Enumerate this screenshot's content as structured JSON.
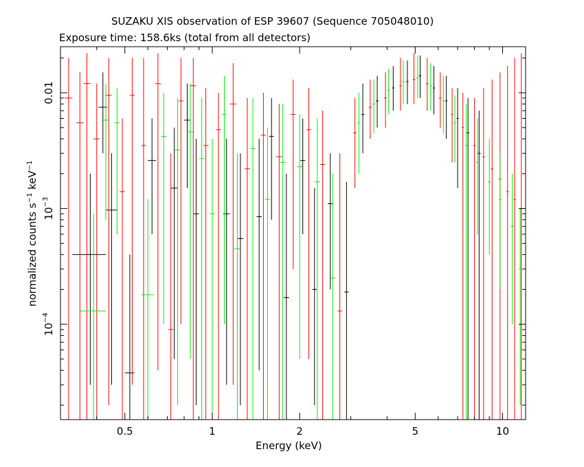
{
  "chart_data": {
    "type": "scatter",
    "title": "SUZAKU XIS observation of ESP 39607 (Sequence 705048010)",
    "subtitle": "Exposure time: 158.6ks (total from all detectors)",
    "xlabel": "Energy (keV)",
    "ylabel": {
      "prefix": "normalized counts s",
      "sup1": "−1",
      "mid": " keV",
      "sup2": "−1"
    },
    "xscale": "log",
    "yscale": "log",
    "xlim": [
      0.3,
      12
    ],
    "ylim": [
      1.5e-05,
      0.025
    ],
    "x_ticks": [
      {
        "value": 0.5,
        "label": "0.5"
      },
      {
        "value": 1,
        "label": "1"
      },
      {
        "value": 2,
        "label": "2"
      },
      {
        "value": 5,
        "label": "5"
      },
      {
        "value": 10,
        "label": "10"
      }
    ],
    "y_ticks": [
      {
        "value": 0.01,
        "label": "0.01"
      },
      {
        "value": 0.001,
        "base": "10",
        "exp": "−3"
      },
      {
        "value": 0.0001,
        "base": "10",
        "exp": "−4"
      }
    ],
    "grid": false,
    "legend": "none",
    "series": [
      {
        "color": "#000000",
        "points": [
          {
            "x": 0.38,
            "dx": 0.05,
            "y": 0.0004,
            "ylo": 3e-05,
            "yhi": 0.002
          },
          {
            "x": 0.42,
            "dx": 0.015,
            "y": 0.0075,
            "ylo": 0.003,
            "yhi": 0.015
          },
          {
            "x": 0.45,
            "dx": 0.02,
            "y": 0.00097,
            "ylo": 3e-05,
            "yhi": 0.003
          },
          {
            "x": 0.52,
            "dx": 0.02,
            "y": 3.8e-05,
            "ylo": 1.5e-05,
            "yhi": 0.0004
          },
          {
            "x": 0.62,
            "dx": 0.02,
            "y": 0.0026,
            "ylo": 0.0006,
            "yhi": 0.006
          },
          {
            "x": 0.74,
            "dx": 0.02,
            "y": 0.0015,
            "ylo": 5e-05,
            "yhi": 0.005
          },
          {
            "x": 0.82,
            "dx": 0.02,
            "y": 0.0058,
            "ylo": 0.0015,
            "yhi": 0.012
          },
          {
            "x": 0.88,
            "dx": 0.02,
            "y": 0.0009,
            "ylo": 2e-05,
            "yhi": 0.004
          },
          {
            "x": 1.12,
            "dx": 0.03,
            "y": 0.0009,
            "ylo": 3e-05,
            "yhi": 0.004
          },
          {
            "x": 1.25,
            "dx": 0.03,
            "y": 0.00055,
            "ylo": 2e-05,
            "yhi": 0.003
          },
          {
            "x": 1.45,
            "dx": 0.03,
            "y": 0.00085,
            "ylo": 4e-05,
            "yhi": 0.004
          },
          {
            "x": 1.6,
            "dx": 0.03,
            "y": 0.0042,
            "ylo": 0.0008,
            "yhi": 0.009
          },
          {
            "x": 1.8,
            "dx": 0.04,
            "y": 0.00017,
            "ylo": 1.5e-05,
            "yhi": 0.002
          },
          {
            "x": 2.05,
            "dx": 0.04,
            "y": 0.0026,
            "ylo": 0.0006,
            "yhi": 0.006
          },
          {
            "x": 2.25,
            "dx": 0.04,
            "y": 0.0002,
            "ylo": 2e-05,
            "yhi": 0.0015
          },
          {
            "x": 2.55,
            "dx": 0.05,
            "y": 0.0011,
            "ylo": 0.0002,
            "yhi": 0.003
          },
          {
            "x": 2.9,
            "dx": 0.05,
            "y": 0.00019,
            "ylo": 1.5e-05,
            "yhi": 0.0017
          },
          {
            "x": 3.3,
            "dx": 0.04,
            "y": 0.0065,
            "ylo": 0.003,
            "yhi": 0.012
          },
          {
            "x": 3.7,
            "dx": 0.04,
            "y": 0.0085,
            "ylo": 0.005,
            "yhi": 0.014
          },
          {
            "x": 4.2,
            "dx": 0.04,
            "y": 0.011,
            "ylo": 0.007,
            "yhi": 0.017
          },
          {
            "x": 4.7,
            "dx": 0.04,
            "y": 0.0125,
            "ylo": 0.008,
            "yhi": 0.019
          },
          {
            "x": 5.2,
            "dx": 0.05,
            "y": 0.014,
            "ylo": 0.009,
            "yhi": 0.021
          },
          {
            "x": 5.8,
            "dx": 0.05,
            "y": 0.011,
            "ylo": 0.0065,
            "yhi": 0.017
          },
          {
            "x": 6.4,
            "dx": 0.06,
            "y": 0.0085,
            "ylo": 0.004,
            "yhi": 0.014
          },
          {
            "x": 7.0,
            "dx": 0.06,
            "y": 0.006,
            "ylo": 0.0015,
            "yhi": 0.011
          },
          {
            "x": 7.6,
            "dx": 0.08,
            "y": 0.0045,
            "ylo": 1.5e-05,
            "yhi": 0.009
          },
          {
            "x": 8.3,
            "dx": 0.1,
            "y": 0.003,
            "ylo": 1.5e-05,
            "yhi": 0.007
          }
        ]
      },
      {
        "color": "#ff0000",
        "points": [
          {
            "x": 0.32,
            "dx": 0.01,
            "y": 0.009,
            "ylo": 1.5e-05,
            "yhi": 0.02
          },
          {
            "x": 0.35,
            "dx": 0.01,
            "y": 0.0055,
            "ylo": 1.5e-05,
            "yhi": 0.015
          },
          {
            "x": 0.37,
            "dx": 0.01,
            "y": 0.012,
            "ylo": 1.5e-05,
            "yhi": 0.022
          },
          {
            "x": 0.4,
            "dx": 0.01,
            "y": 0.004,
            "ylo": 1.5e-05,
            "yhi": 0.012
          },
          {
            "x": 0.44,
            "dx": 0.01,
            "y": 0.0095,
            "ylo": 2e-05,
            "yhi": 0.02
          },
          {
            "x": 0.49,
            "dx": 0.01,
            "y": 0.0014,
            "ylo": 1.5e-05,
            "yhi": 0.006
          },
          {
            "x": 0.53,
            "dx": 0.01,
            "y": 0.0095,
            "ylo": 3e-05,
            "yhi": 0.02
          },
          {
            "x": 0.58,
            "dx": 0.01,
            "y": 0.0035,
            "ylo": 1.5e-05,
            "yhi": 0.02
          },
          {
            "x": 0.65,
            "dx": 0.015,
            "y": 0.012,
            "ylo": 4e-05,
            "yhi": 0.022
          },
          {
            "x": 0.72,
            "dx": 0.015,
            "y": 9e-05,
            "ylo": 1.5e-05,
            "yhi": 0.003
          },
          {
            "x": 0.78,
            "dx": 0.015,
            "y": 0.0085,
            "ylo": 0.0001,
            "yhi": 0.02
          },
          {
            "x": 0.86,
            "dx": 0.02,
            "y": 0.0115,
            "ylo": 1.5e-05,
            "yhi": 0.02
          },
          {
            "x": 0.95,
            "dx": 0.02,
            "y": 0.0035,
            "ylo": 1.5e-05,
            "yhi": 0.011
          },
          {
            "x": 1.05,
            "dx": 0.02,
            "y": 0.0048,
            "ylo": 1.5e-05,
            "yhi": 0.01
          },
          {
            "x": 1.18,
            "dx": 0.03,
            "y": 0.008,
            "ylo": 3e-05,
            "yhi": 0.018
          },
          {
            "x": 1.32,
            "dx": 0.03,
            "y": 0.0022,
            "ylo": 1.5e-05,
            "yhi": 0.009
          },
          {
            "x": 1.5,
            "dx": 0.03,
            "y": 0.0043,
            "ylo": 1.5e-05,
            "yhi": 0.01
          },
          {
            "x": 1.7,
            "dx": 0.04,
            "y": 0.0028,
            "ylo": 1.5e-05,
            "yhi": 0.008
          },
          {
            "x": 1.9,
            "dx": 0.04,
            "y": 0.0065,
            "ylo": 0.0003,
            "yhi": 0.013
          },
          {
            "x": 2.15,
            "dx": 0.04,
            "y": 0.0048,
            "ylo": 5e-05,
            "yhi": 0.011
          },
          {
            "x": 2.4,
            "dx": 0.05,
            "y": 0.0024,
            "ylo": 1.5e-05,
            "yhi": 0.007
          },
          {
            "x": 2.75,
            "dx": 0.05,
            "y": 0.00013,
            "ylo": 1.5e-05,
            "yhi": 0.003
          },
          {
            "x": 3.1,
            "dx": 0.04,
            "y": 0.0045,
            "ylo": 0.0015,
            "yhi": 0.009
          },
          {
            "x": 3.5,
            "dx": 0.04,
            "y": 0.0075,
            "ylo": 0.004,
            "yhi": 0.013
          },
          {
            "x": 3.95,
            "dx": 0.04,
            "y": 0.009,
            "ylo": 0.005,
            "yhi": 0.015
          },
          {
            "x": 4.45,
            "dx": 0.04,
            "y": 0.0115,
            "ylo": 0.007,
            "yhi": 0.02
          },
          {
            "x": 4.95,
            "dx": 0.05,
            "y": 0.013,
            "ylo": 0.008,
            "yhi": 0.022
          },
          {
            "x": 5.5,
            "dx": 0.05,
            "y": 0.012,
            "ylo": 0.007,
            "yhi": 0.02
          },
          {
            "x": 6.1,
            "dx": 0.06,
            "y": 0.009,
            "ylo": 0.005,
            "yhi": 0.015
          },
          {
            "x": 6.7,
            "dx": 0.06,
            "y": 0.0065,
            "ylo": 0.0025,
            "yhi": 0.011
          },
          {
            "x": 7.3,
            "dx": 0.07,
            "y": 0.005,
            "ylo": 1.5e-05,
            "yhi": 0.01
          },
          {
            "x": 8.0,
            "dx": 0.08,
            "y": 0.0035,
            "ylo": 1.5e-05,
            "yhi": 0.009
          },
          {
            "x": 8.6,
            "dx": 0.08,
            "y": 0.0028,
            "ylo": 1.5e-05,
            "yhi": 0.011
          },
          {
            "x": 9.2,
            "dx": 0.09,
            "y": 0.0022,
            "ylo": 1.5e-05,
            "yhi": 0.013
          },
          {
            "x": 9.8,
            "dx": 0.1,
            "y": 0.0018,
            "ylo": 1.5e-05,
            "yhi": 0.015
          },
          {
            "x": 10.4,
            "dx": 0.1,
            "y": 0.0014,
            "ylo": 1.5e-05,
            "yhi": 0.017
          },
          {
            "x": 11.0,
            "dx": 0.1,
            "y": 0.0012,
            "ylo": 1.5e-05,
            "yhi": 0.02
          },
          {
            "x": 11.6,
            "dx": 0.1,
            "y": 0.001,
            "ylo": 1.5e-05,
            "yhi": 0.022
          }
        ]
      },
      {
        "color": "#00ee00",
        "points": [
          {
            "x": 0.39,
            "dx": 0.04,
            "y": 0.00013,
            "ylo": 1.5e-05,
            "yhi": 0.0009
          },
          {
            "x": 0.43,
            "dx": 0.01,
            "y": 0.0058,
            "ylo": 0.0008,
            "yhi": 0.012
          },
          {
            "x": 0.47,
            "dx": 0.01,
            "y": 0.0055,
            "ylo": 0.0006,
            "yhi": 0.011
          },
          {
            "x": 0.6,
            "dx": 0.03,
            "y": 0.00018,
            "ylo": 1.5e-05,
            "yhi": 0.0012
          },
          {
            "x": 0.68,
            "dx": 0.015,
            "y": 0.0042,
            "ylo": 0.0001,
            "yhi": 0.01
          },
          {
            "x": 0.76,
            "dx": 0.015,
            "y": 0.0032,
            "ylo": 2e-05,
            "yhi": 0.009
          },
          {
            "x": 0.84,
            "dx": 0.02,
            "y": 0.0046,
            "ylo": 5e-05,
            "yhi": 0.012
          },
          {
            "x": 0.92,
            "dx": 0.02,
            "y": 0.0027,
            "ylo": 1.5e-05,
            "yhi": 0.009
          },
          {
            "x": 1.0,
            "dx": 0.02,
            "y": 0.0009,
            "ylo": 1.5e-05,
            "yhi": 0.004
          },
          {
            "x": 1.1,
            "dx": 0.02,
            "y": 0.0065,
            "ylo": 0.0001,
            "yhi": 0.014
          },
          {
            "x": 1.22,
            "dx": 0.03,
            "y": 0.00045,
            "ylo": 1.5e-05,
            "yhi": 0.003
          },
          {
            "x": 1.38,
            "dx": 0.03,
            "y": 0.0033,
            "ylo": 1.5e-05,
            "yhi": 0.009
          },
          {
            "x": 1.55,
            "dx": 0.03,
            "y": 0.0012,
            "ylo": 1.5e-05,
            "yhi": 0.005
          },
          {
            "x": 1.75,
            "dx": 0.04,
            "y": 0.0025,
            "ylo": 1.5e-05,
            "yhi": 0.008
          },
          {
            "x": 2.0,
            "dx": 0.04,
            "y": 0.0023,
            "ylo": 5e-05,
            "yhi": 0.0065
          },
          {
            "x": 2.3,
            "dx": 0.05,
            "y": 0.0017,
            "ylo": 1.5e-05,
            "yhi": 0.006
          },
          {
            "x": 2.6,
            "dx": 0.05,
            "y": 0.00025,
            "ylo": 1.5e-05,
            "yhi": 0.002
          },
          {
            "x": 3.2,
            "dx": 0.04,
            "y": 0.0055,
            "ylo": 0.002,
            "yhi": 0.01
          },
          {
            "x": 3.6,
            "dx": 0.04,
            "y": 0.008,
            "ylo": 0.0045,
            "yhi": 0.013
          },
          {
            "x": 4.05,
            "dx": 0.04,
            "y": 0.0105,
            "ylo": 0.0065,
            "yhi": 0.016
          },
          {
            "x": 4.55,
            "dx": 0.04,
            "y": 0.0125,
            "ylo": 0.008,
            "yhi": 0.019
          },
          {
            "x": 5.1,
            "dx": 0.05,
            "y": 0.0135,
            "ylo": 0.009,
            "yhi": 0.021
          },
          {
            "x": 5.65,
            "dx": 0.05,
            "y": 0.0115,
            "ylo": 0.007,
            "yhi": 0.018
          },
          {
            "x": 6.25,
            "dx": 0.06,
            "y": 0.0085,
            "ylo": 0.0045,
            "yhi": 0.014
          },
          {
            "x": 6.85,
            "dx": 0.06,
            "y": 0.0055,
            "ylo": 0.0025,
            "yhi": 0.0095
          },
          {
            "x": 7.5,
            "dx": 0.08,
            "y": 0.0035,
            "ylo": 1.5e-05,
            "yhi": 0.008
          },
          {
            "x": 8.2,
            "dx": 0.1,
            "y": 0.0025,
            "ylo": 0.0006,
            "yhi": 0.006
          },
          {
            "x": 9.0,
            "dx": 0.1,
            "y": 0.0017,
            "ylo": 0.0004,
            "yhi": 0.004
          },
          {
            "x": 9.8,
            "dx": 0.1,
            "y": 0.0012,
            "ylo": 0.0002,
            "yhi": 0.003
          },
          {
            "x": 10.8,
            "dx": 0.12,
            "y": 0.0007,
            "ylo": 0.0001,
            "yhi": 0.002
          },
          {
            "x": 11.5,
            "dx": 0.12,
            "y": 0.0003,
            "ylo": 2e-05,
            "yhi": 0.001
          }
        ]
      }
    ]
  }
}
